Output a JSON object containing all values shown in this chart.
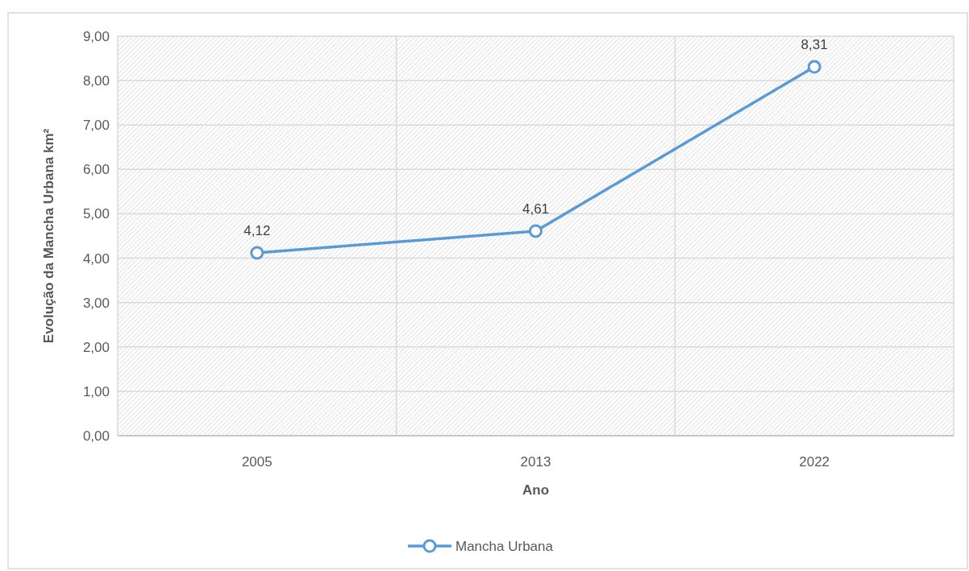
{
  "chart_data": {
    "type": "line",
    "xlabel": "Ano",
    "ylabel": "Evolução da Mancha Urbana km²",
    "categories": [
      "2005",
      "2013",
      "2022"
    ],
    "series": [
      {
        "name": "Mancha Urbana",
        "color": "#5b9bd5",
        "values": [
          4.12,
          4.61,
          8.31
        ],
        "value_labels": [
          "4,12",
          "4,61",
          "8,31"
        ]
      }
    ],
    "ylim": [
      0,
      9
    ],
    "yticks": [
      {
        "value": 0,
        "label": "0,00"
      },
      {
        "value": 1,
        "label": "1,00"
      },
      {
        "value": 2,
        "label": "2,00"
      },
      {
        "value": 3,
        "label": "3,00"
      },
      {
        "value": 4,
        "label": "4,00"
      },
      {
        "value": 5,
        "label": "5,00"
      },
      {
        "value": 6,
        "label": "6,00"
      },
      {
        "value": 7,
        "label": "7,00"
      },
      {
        "value": 8,
        "label": "8,00"
      },
      {
        "value": 9,
        "label": "9,00"
      }
    ],
    "grid": true,
    "legend": "bottom",
    "marker": "circle",
    "line_style": "solid"
  }
}
